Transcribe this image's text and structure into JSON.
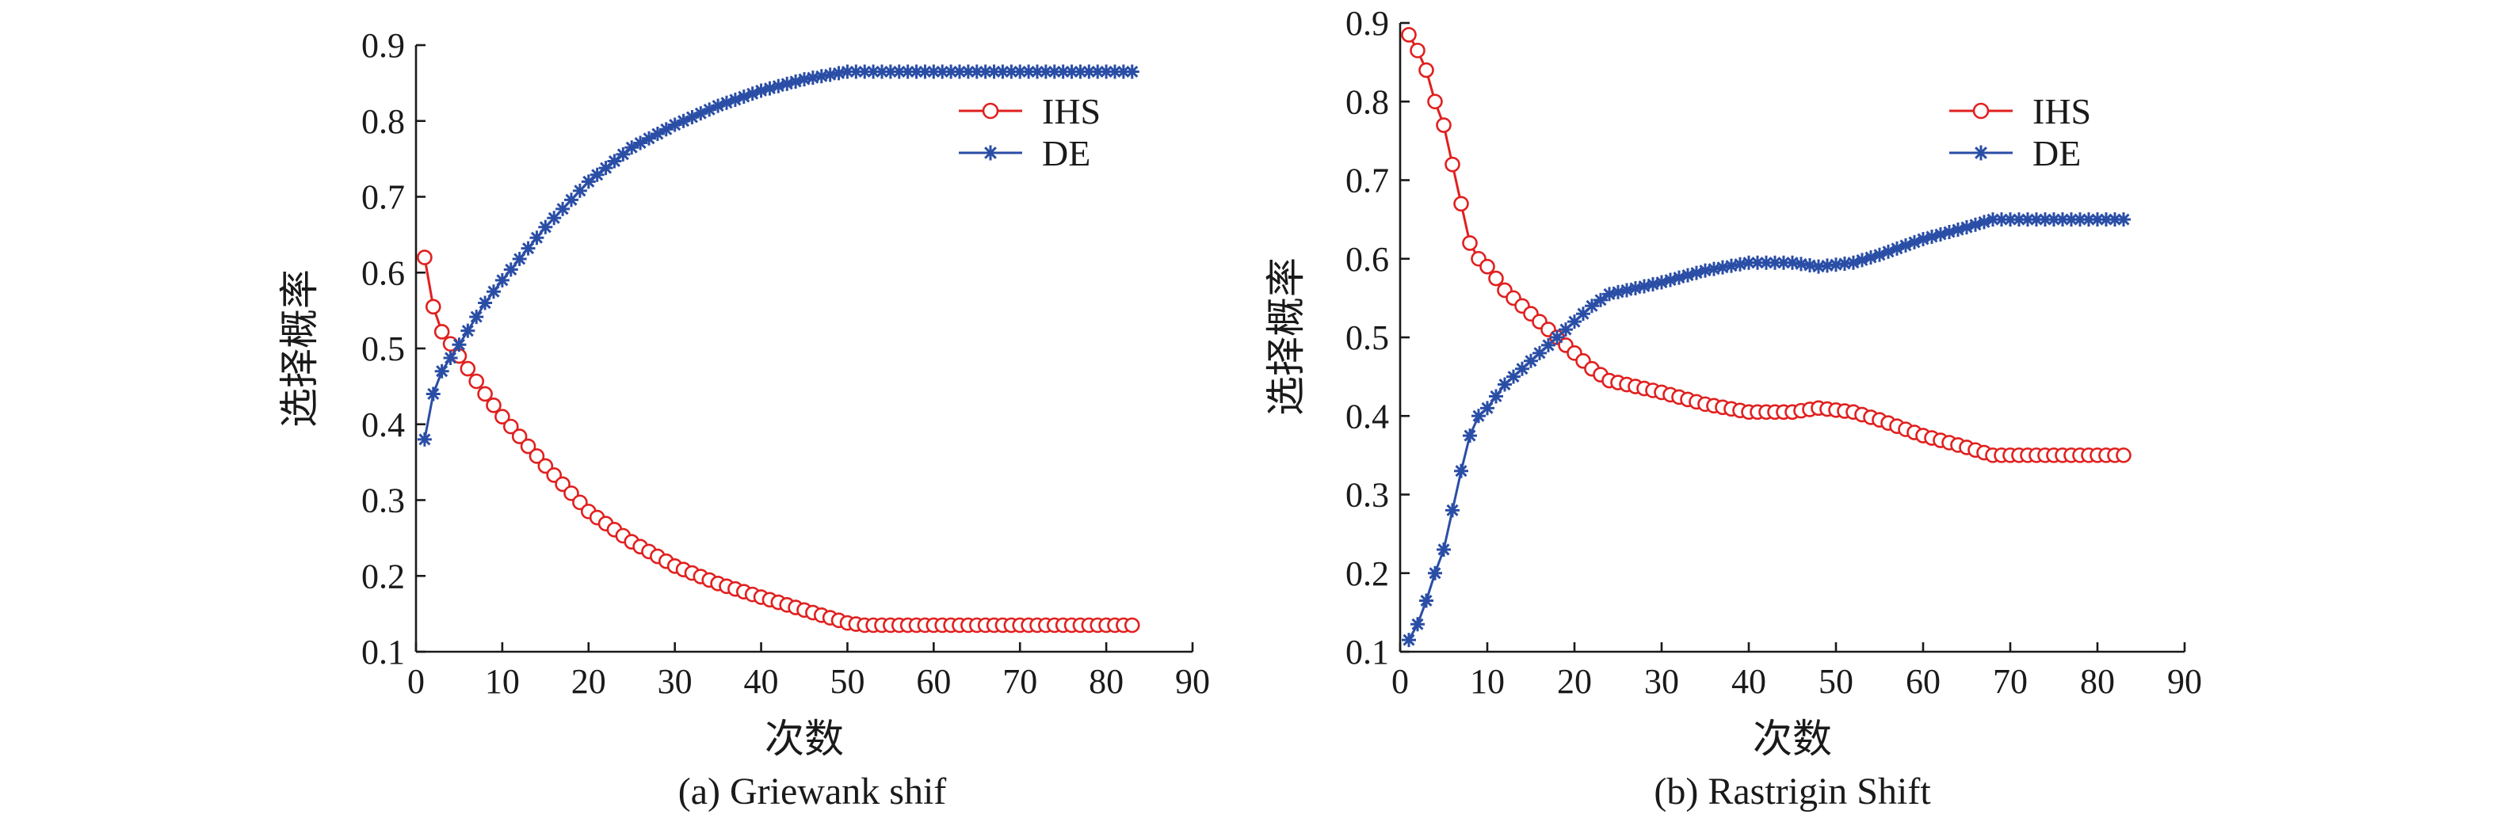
{
  "colors": {
    "ihs": "#e0201f",
    "de": "#2a4ea6"
  },
  "chart_data": [
    {
      "type": "line",
      "caption": "(a) Griewank shif",
      "xlabel": "次数",
      "ylabel": "选择概率",
      "xlim": [
        0,
        90
      ],
      "ylim": [
        0.1,
        0.9
      ],
      "xticks": [
        "0",
        "10",
        "20",
        "30",
        "40",
        "50",
        "60",
        "70",
        "80",
        "90"
      ],
      "yticks": [
        "0.1",
        "0.2",
        "0.3",
        "0.4",
        "0.5",
        "0.6",
        "0.7",
        "0.8",
        "0.9"
      ],
      "legend_position": "top-right",
      "series": [
        {
          "name": "IHS",
          "marker": "circle",
          "control_points": [
            [
              1,
              0.62
            ],
            [
              2,
              0.555
            ],
            [
              3,
              0.522
            ],
            [
              5,
              0.49
            ],
            [
              8,
              0.44
            ],
            [
              10,
              0.41
            ],
            [
              15,
              0.345
            ],
            [
              20,
              0.285
            ],
            [
              25,
              0.245
            ],
            [
              30,
              0.213
            ],
            [
              35,
              0.19
            ],
            [
              40,
              0.172
            ],
            [
              45,
              0.155
            ],
            [
              50,
              0.138
            ],
            [
              52,
              0.135
            ],
            [
              83,
              0.135
            ]
          ]
        },
        {
          "name": "DE",
          "marker": "star",
          "control_points": [
            [
              1,
              0.38
            ],
            [
              2,
              0.44
            ],
            [
              3,
              0.47
            ],
            [
              5,
              0.505
            ],
            [
              8,
              0.56
            ],
            [
              10,
              0.59
            ],
            [
              15,
              0.66
            ],
            [
              20,
              0.72
            ],
            [
              25,
              0.765
            ],
            [
              30,
              0.795
            ],
            [
              35,
              0.82
            ],
            [
              40,
              0.84
            ],
            [
              45,
              0.855
            ],
            [
              50,
              0.865
            ],
            [
              52,
              0.865
            ],
            [
              83,
              0.865
            ]
          ]
        }
      ]
    },
    {
      "type": "line",
      "caption": "(b) Rastrigin Shift",
      "xlabel": "次数",
      "ylabel": "选择概率",
      "xlim": [
        0,
        90
      ],
      "ylim": [
        0.1,
        0.9
      ],
      "xticks": [
        "0",
        "10",
        "20",
        "30",
        "40",
        "50",
        "60",
        "70",
        "80",
        "90"
      ],
      "yticks": [
        "0.1",
        "0.2",
        "0.3",
        "0.4",
        "0.5",
        "0.6",
        "0.7",
        "0.8",
        "0.9"
      ],
      "legend_position": "top-right",
      "series": [
        {
          "name": "IHS",
          "marker": "circle",
          "control_points": [
            [
              1,
              0.885
            ],
            [
              2,
              0.865
            ],
            [
              3,
              0.84
            ],
            [
              4,
              0.8
            ],
            [
              5,
              0.77
            ],
            [
              6,
              0.72
            ],
            [
              7,
              0.67
            ],
            [
              8,
              0.62
            ],
            [
              9,
              0.6
            ],
            [
              10,
              0.59
            ],
            [
              12,
              0.56
            ],
            [
              15,
              0.53
            ],
            [
              18,
              0.5
            ],
            [
              20,
              0.48
            ],
            [
              22,
              0.46
            ],
            [
              24,
              0.445
            ],
            [
              26,
              0.44
            ],
            [
              30,
              0.43
            ],
            [
              35,
              0.415
            ],
            [
              40,
              0.405
            ],
            [
              45,
              0.405
            ],
            [
              48,
              0.41
            ],
            [
              52,
              0.405
            ],
            [
              55,
              0.395
            ],
            [
              60,
              0.375
            ],
            [
              65,
              0.36
            ],
            [
              68,
              0.35
            ],
            [
              70,
              0.35
            ],
            [
              83,
              0.35
            ]
          ]
        },
        {
          "name": "DE",
          "marker": "star",
          "control_points": [
            [
              1,
              0.115
            ],
            [
              2,
              0.135
            ],
            [
              3,
              0.165
            ],
            [
              4,
              0.2
            ],
            [
              5,
              0.23
            ],
            [
              6,
              0.28
            ],
            [
              7,
              0.33
            ],
            [
              8,
              0.375
            ],
            [
              9,
              0.4
            ],
            [
              10,
              0.41
            ],
            [
              12,
              0.44
            ],
            [
              15,
              0.47
            ],
            [
              18,
              0.5
            ],
            [
              20,
              0.52
            ],
            [
              22,
              0.54
            ],
            [
              24,
              0.555
            ],
            [
              26,
              0.56
            ],
            [
              30,
              0.57
            ],
            [
              35,
              0.585
            ],
            [
              40,
              0.595
            ],
            [
              45,
              0.595
            ],
            [
              48,
              0.59
            ],
            [
              52,
              0.595
            ],
            [
              55,
              0.605
            ],
            [
              60,
              0.625
            ],
            [
              65,
              0.64
            ],
            [
              68,
              0.65
            ],
            [
              70,
              0.65
            ],
            [
              83,
              0.65
            ]
          ]
        }
      ]
    }
  ]
}
